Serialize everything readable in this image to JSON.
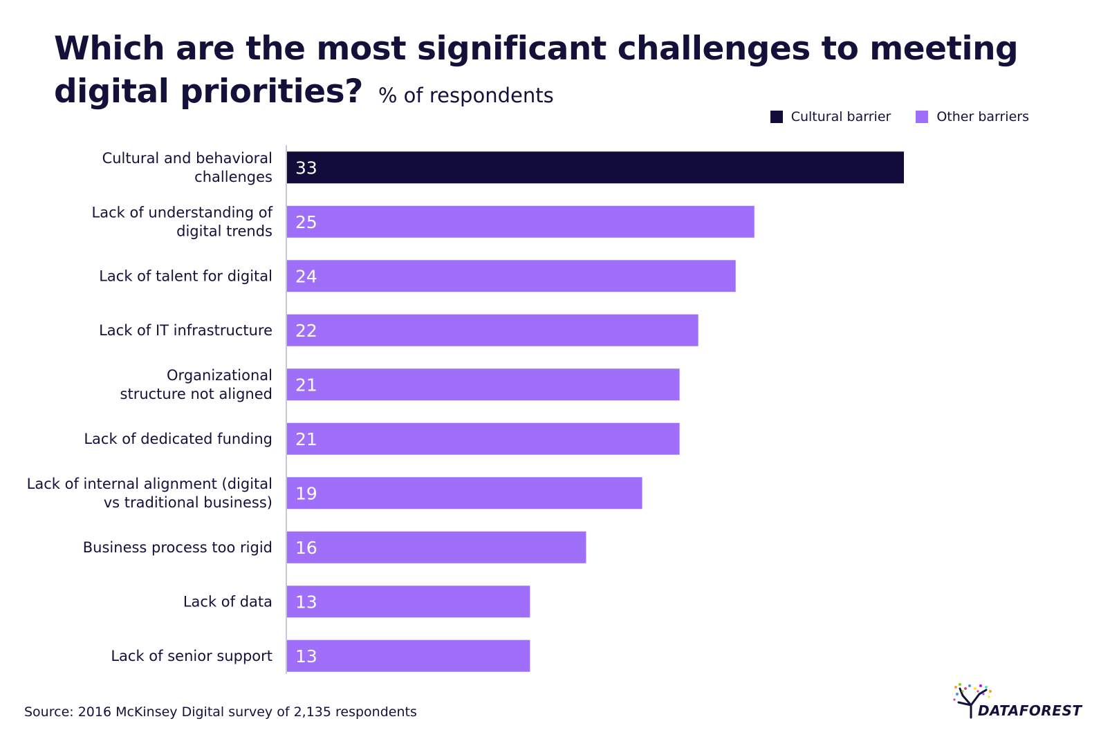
{
  "header": {
    "title": "Which are the most significant challenges to meeting digital priorities?",
    "subtitle": "% of respondents"
  },
  "legend": [
    {
      "label": "Cultural barrier",
      "color": "#110c3a"
    },
    {
      "label": "Other barriers",
      "color": "#a06ffa"
    }
  ],
  "chart_data": {
    "type": "bar",
    "orientation": "horizontal",
    "title": "Which are the most significant challenges to meeting digital priorities?",
    "subtitle": "% of respondents",
    "xlabel": "",
    "ylabel": "",
    "xlim": [
      0,
      33
    ],
    "grid": false,
    "legend_position": "top-right",
    "categories": [
      [
        "Cultural and behavioral",
        "challenges"
      ],
      [
        "Lack of understanding of",
        "digital trends"
      ],
      [
        "Lack of talent for digital"
      ],
      [
        "Lack of IT infrastructure"
      ],
      [
        "Organizational",
        "structure not aligned"
      ],
      [
        "Lack of dedicated funding"
      ],
      [
        "Lack of internal alignment (digital",
        "vs traditional business)"
      ],
      [
        "Business process too rigid"
      ],
      [
        "Lack of data"
      ],
      [
        "Lack of senior support"
      ]
    ],
    "values": [
      33,
      25,
      24,
      22,
      21,
      21,
      19,
      16,
      13,
      13
    ],
    "groups": [
      "Cultural barrier",
      "Other barriers",
      "Other barriers",
      "Other barriers",
      "Other barriers",
      "Other barriers",
      "Other barriers",
      "Other barriers",
      "Other barriers",
      "Other barriers"
    ],
    "colors": {
      "Cultural barrier": "#110c3a",
      "Other barriers": "#a06ffa"
    }
  },
  "footer": {
    "source": "Source: 2016 McKinsey Digital survey of 2,135 respondents",
    "logo_text": "DATAFOREST"
  }
}
